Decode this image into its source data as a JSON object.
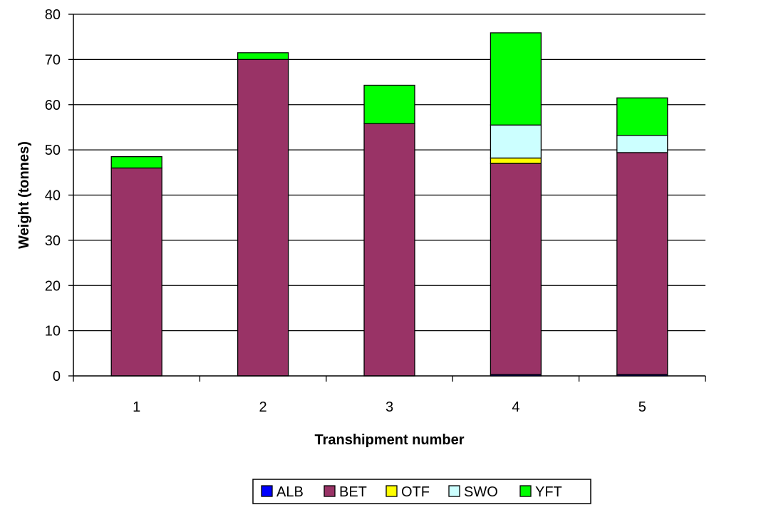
{
  "chart_data": {
    "type": "bar",
    "stacked": true,
    "title": "",
    "xlabel": "Transhipment number",
    "ylabel": "Weight (tonnes)",
    "categories": [
      "1",
      "2",
      "3",
      "4",
      "5"
    ],
    "ylim": [
      0,
      80
    ],
    "yticks": [
      "0",
      "10",
      "20",
      "30",
      "40",
      "50",
      "60",
      "70",
      "80"
    ],
    "grid": true,
    "legend": "bottom",
    "series": [
      {
        "name": "ALB",
        "color": "#0000ff",
        "values": [
          0,
          0,
          0,
          0.3,
          0.3
        ]
      },
      {
        "name": "BET",
        "color": "#993366",
        "values": [
          46,
          70,
          55.8,
          46.7,
          49.1
        ]
      },
      {
        "name": "OTF",
        "color": "#ffff00",
        "values": [
          0,
          0,
          0,
          1.2,
          0
        ]
      },
      {
        "name": "SWO",
        "color": "#ccffff",
        "values": [
          0,
          0,
          0,
          7.3,
          3.8
        ]
      },
      {
        "name": "YFT",
        "color": "#00ff00",
        "values": [
          2.5,
          1.5,
          8.5,
          20.4,
          8.3
        ]
      }
    ]
  }
}
